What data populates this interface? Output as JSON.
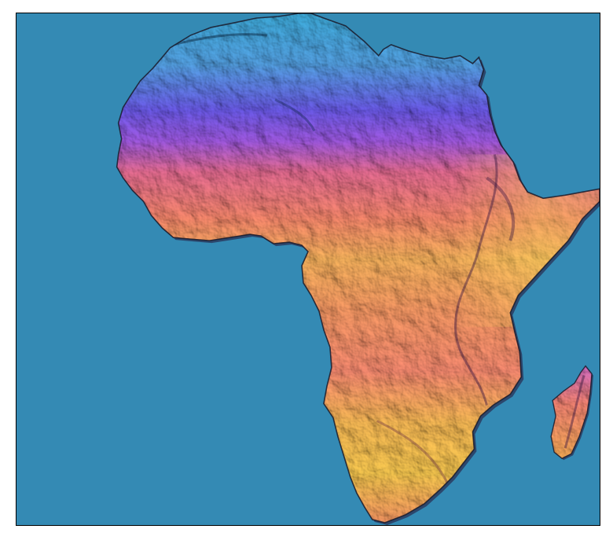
{
  "map": {
    "region": "Africa",
    "style": "shaded-relief",
    "colors": {
      "ocean": "#348ab4",
      "frame": "#000000",
      "land_north": "#48b6e6",
      "land_band_blue": "#6a5cf0",
      "land_band_purple": "#b061e6",
      "land_band_pink": "#f07a8a",
      "land_band_orange": "#ff9a5a",
      "land_band_yellow": "#ffcf4a",
      "relief_shadow": "#2a1040"
    },
    "landmasses": [
      "africa-mainland",
      "madagascar"
    ]
  }
}
